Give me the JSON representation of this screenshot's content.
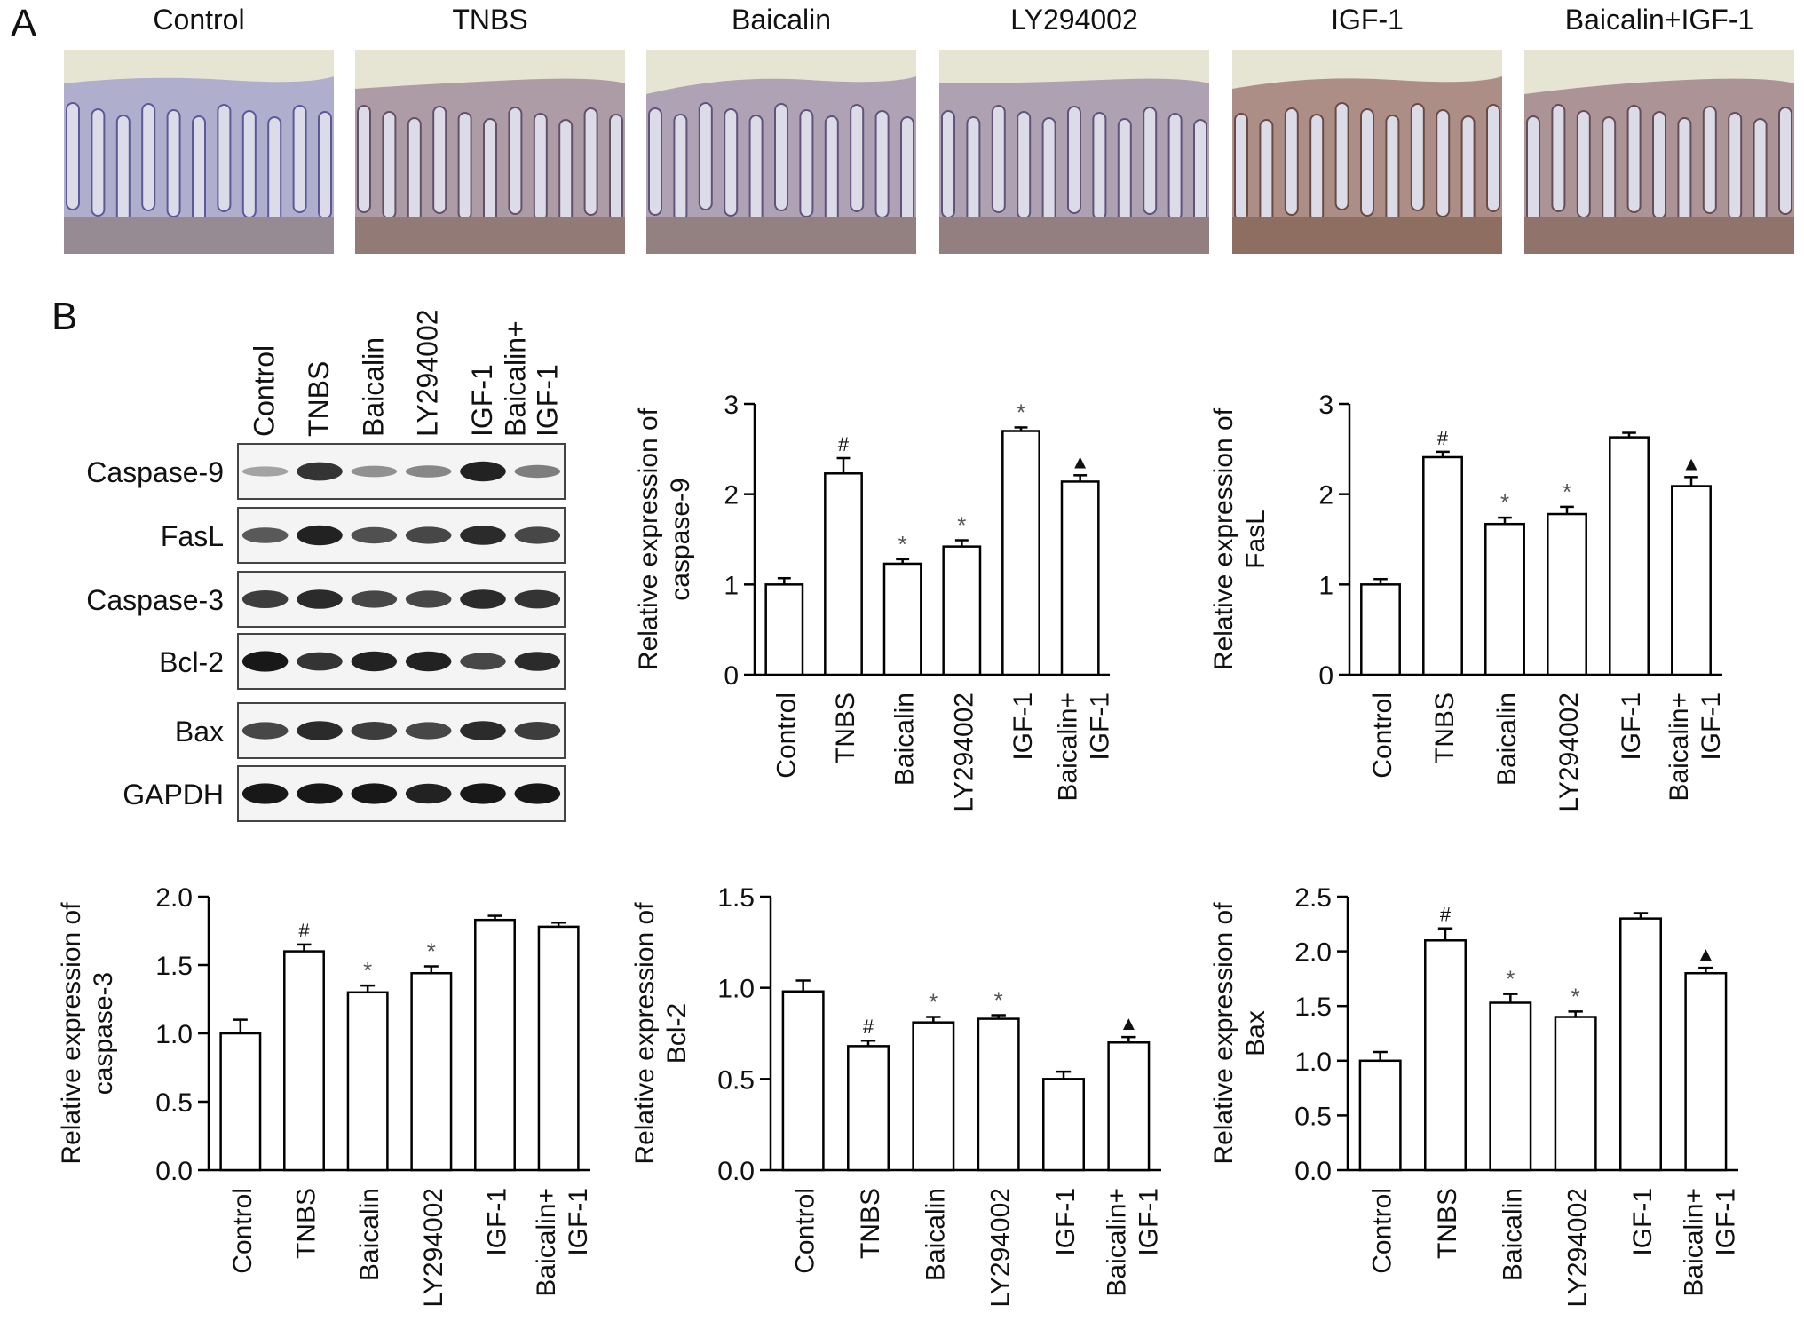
{
  "panel_a": {
    "letter": "A",
    "images": [
      {
        "label": "Control",
        "stain": 0.05
      },
      {
        "label": "TNBS",
        "stain": 0.45
      },
      {
        "label": "Baicalin",
        "stain": 0.3
      },
      {
        "label": "LY294002",
        "stain": 0.32
      },
      {
        "label": "IGF-1",
        "stain": 0.75
      },
      {
        "label": "Baicalin+IGF-1",
        "stain": 0.6
      }
    ]
  },
  "panel_b": {
    "letter": "B",
    "blot": {
      "lanes": [
        "Control",
        "TNBS",
        "Baicalin",
        "LY294002",
        "IGF-1",
        "Baicalin+\nIGF-1"
      ],
      "rows": [
        {
          "label": "Caspase-9",
          "intensity": [
            0.2,
            0.8,
            0.3,
            0.35,
            0.9,
            0.4
          ]
        },
        {
          "label": "FasL",
          "intensity": [
            0.6,
            0.9,
            0.65,
            0.7,
            0.85,
            0.7
          ]
        },
        {
          "label": "Caspase-3",
          "intensity": [
            0.75,
            0.85,
            0.7,
            0.7,
            0.85,
            0.8
          ]
        },
        {
          "label": "Bcl-2",
          "intensity": [
            0.95,
            0.8,
            0.9,
            0.9,
            0.7,
            0.85
          ]
        },
        {
          "label": "Bax",
          "intensity": [
            0.7,
            0.85,
            0.75,
            0.7,
            0.85,
            0.75
          ]
        },
        {
          "label": "GAPDH",
          "intensity": [
            0.95,
            0.95,
            0.95,
            0.9,
            0.95,
            0.95
          ]
        }
      ]
    }
  },
  "chart_data": [
    {
      "type": "bar",
      "categories": [
        "Control",
        "TNBS",
        "Baicalin",
        "LY294002",
        "IGF-1",
        "Baicalin+\nIGF-1"
      ],
      "values": [
        1.0,
        2.23,
        1.23,
        1.42,
        2.7,
        2.14
      ],
      "errors": [
        0.07,
        0.17,
        0.05,
        0.07,
        0.04,
        0.07
      ],
      "annotations": [
        "",
        "#",
        "*",
        "*",
        "*",
        "▲"
      ],
      "ylabel": "Relative expression of\ncaspase-9",
      "ylim": [
        0,
        3
      ],
      "yticks": [
        "0",
        "1",
        "2",
        "3"
      ]
    },
    {
      "type": "bar",
      "categories": [
        "Control",
        "TNBS",
        "Baicalin",
        "LY294002",
        "IGF-1",
        "Baicalin+\nIGF-1"
      ],
      "values": [
        1.0,
        2.41,
        1.67,
        1.78,
        2.63,
        2.09
      ],
      "errors": [
        0.06,
        0.06,
        0.07,
        0.08,
        0.05,
        0.1
      ],
      "annotations": [
        "",
        "#",
        "*",
        "*",
        "",
        "▲"
      ],
      "ylabel": "Relative expression of\nFasL",
      "ylim": [
        0,
        3
      ],
      "yticks": [
        "0",
        "1",
        "2",
        "3"
      ]
    },
    {
      "type": "bar",
      "categories": [
        "Control",
        "TNBS",
        "Baicalin",
        "LY294002",
        "IGF-1",
        "Baicalin+\nIGF-1"
      ],
      "values": [
        1.0,
        1.6,
        1.3,
        1.44,
        1.83,
        1.78
      ],
      "errors": [
        0.1,
        0.05,
        0.05,
        0.05,
        0.03,
        0.03
      ],
      "annotations": [
        "",
        "#",
        "*",
        "*",
        "",
        ""
      ],
      "ylabel": "Relative expression of\ncaspase-3",
      "ylim": [
        0,
        2.0
      ],
      "yticks": [
        "0.0",
        "0.5",
        "1.0",
        "1.5",
        "2.0"
      ]
    },
    {
      "type": "bar",
      "categories": [
        "Control",
        "TNBS",
        "Baicalin",
        "LY294002",
        "IGF-1",
        "Baicalin+\nIGF-1"
      ],
      "values": [
        0.98,
        0.68,
        0.81,
        0.83,
        0.5,
        0.7
      ],
      "errors": [
        0.06,
        0.03,
        0.03,
        0.02,
        0.04,
        0.03
      ],
      "annotations": [
        "",
        "#",
        "*",
        "*",
        "",
        "▲"
      ],
      "ylabel": "Relative expression of\nBcl-2",
      "ylim": [
        0,
        1.5
      ],
      "yticks": [
        "0.0",
        "0.5",
        "1.0",
        "1.5"
      ]
    },
    {
      "type": "bar",
      "categories": [
        "Control",
        "TNBS",
        "Baicalin",
        "LY294002",
        "IGF-1",
        "Baicalin+\nIGF-1"
      ],
      "values": [
        1.0,
        2.1,
        1.53,
        1.4,
        2.3,
        1.8
      ],
      "errors": [
        0.08,
        0.11,
        0.08,
        0.05,
        0.05,
        0.05
      ],
      "annotations": [
        "",
        "#",
        "*",
        "*",
        "",
        "▲"
      ],
      "ylabel": "Relative expression of\nBax",
      "ylim": [
        0,
        2.5
      ],
      "yticks": [
        "0.0",
        "0.5",
        "1.0",
        "1.5",
        "2.0",
        "2.5"
      ]
    }
  ]
}
